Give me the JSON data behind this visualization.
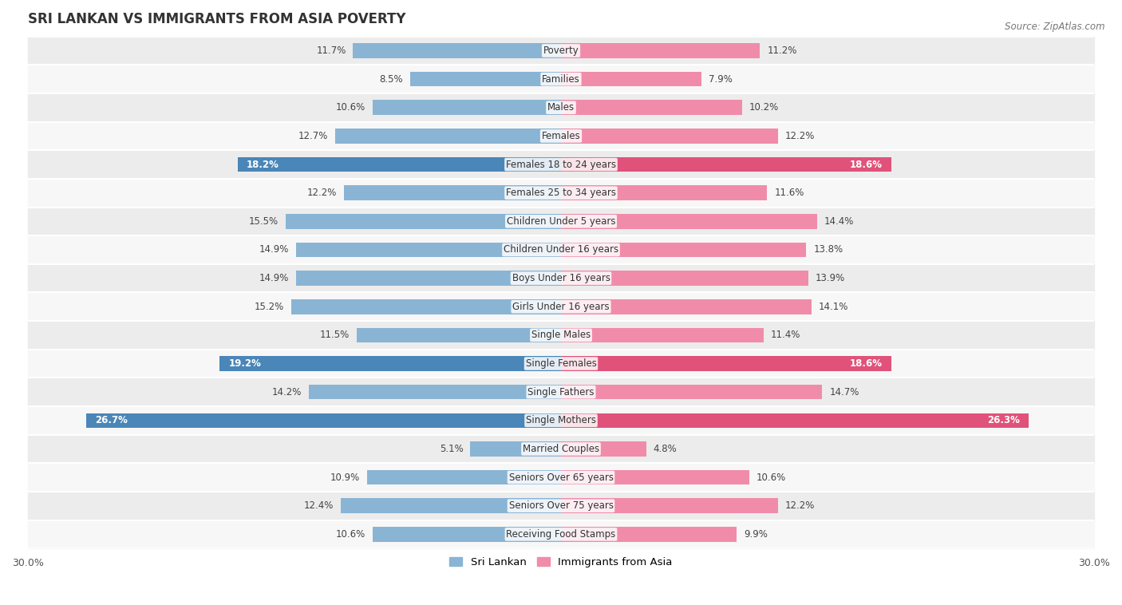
{
  "title": "SRI LANKAN VS IMMIGRANTS FROM ASIA POVERTY",
  "source": "Source: ZipAtlas.com",
  "categories": [
    "Poverty",
    "Families",
    "Males",
    "Females",
    "Females 18 to 24 years",
    "Females 25 to 34 years",
    "Children Under 5 years",
    "Children Under 16 years",
    "Boys Under 16 years",
    "Girls Under 16 years",
    "Single Males",
    "Single Females",
    "Single Fathers",
    "Single Mothers",
    "Married Couples",
    "Seniors Over 65 years",
    "Seniors Over 75 years",
    "Receiving Food Stamps"
  ],
  "sri_lankan": [
    11.7,
    8.5,
    10.6,
    12.7,
    18.2,
    12.2,
    15.5,
    14.9,
    14.9,
    15.2,
    11.5,
    19.2,
    14.2,
    26.7,
    5.1,
    10.9,
    12.4,
    10.6
  ],
  "immigrants_asia": [
    11.2,
    7.9,
    10.2,
    12.2,
    18.6,
    11.6,
    14.4,
    13.8,
    13.9,
    14.1,
    11.4,
    18.6,
    14.7,
    26.3,
    4.8,
    10.6,
    12.2,
    9.9
  ],
  "color_sri_lankan": "#8ab4d4",
  "color_immigrants": "#f08caa",
  "color_highlight_sri": "#4a86b8",
  "color_highlight_imm": "#e0527a",
  "highlight_rows": [
    4,
    11,
    13
  ],
  "axis_max": 30.0,
  "bar_height": 0.52,
  "row_bg_even": "#ececec",
  "row_bg_odd": "#f7f7f7",
  "legend_labels": [
    "Sri Lankan",
    "Immigrants from Asia"
  ]
}
